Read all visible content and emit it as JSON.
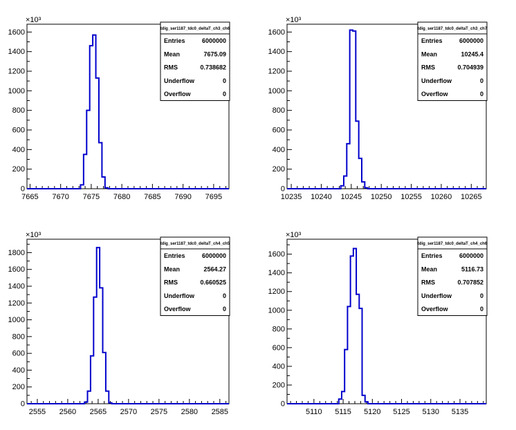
{
  "colors": {
    "histogram": "#0000cc",
    "axis": "#000000",
    "background": "#ffffff"
  },
  "chart_data": [
    {
      "type": "bar",
      "title": "tdig_ser1187_tdc0_deltaT_ch3_ch6",
      "exponent_label": "×10³",
      "xlim": [
        7664.5,
        7697.5
      ],
      "ylim": [
        0,
        1680
      ],
      "x_ticks": [
        7665,
        7670,
        7675,
        7680,
        7685,
        7690,
        7695
      ],
      "y_ticks": [
        0,
        200,
        400,
        600,
        800,
        1000,
        1200,
        1400,
        1600
      ],
      "bins": [
        {
          "x": 7673.5,
          "y": 40
        },
        {
          "x": 7674,
          "y": 350
        },
        {
          "x": 7674.5,
          "y": 800
        },
        {
          "x": 7675,
          "y": 1460
        },
        {
          "x": 7675.5,
          "y": 1570
        },
        {
          "x": 7676,
          "y": 1130
        },
        {
          "x": 7676.5,
          "y": 470
        },
        {
          "x": 7677,
          "y": 120
        },
        {
          "x": 7677.5,
          "y": 10
        }
      ],
      "bin_width": 0.5,
      "stats": [
        {
          "label": "Entries",
          "value": "6000000"
        },
        {
          "label": "Mean",
          "value": "7675.09"
        },
        {
          "label": "RMS",
          "value": "0.738682"
        },
        {
          "label": "Underflow",
          "value": "0"
        },
        {
          "label": "Overflow",
          "value": "0"
        }
      ]
    },
    {
      "type": "bar",
      "title": "tdig_ser1187_tdc0_deltaT_ch3_ch7",
      "exponent_label": "×10³",
      "xlim": [
        10234.3,
        10267.5
      ],
      "ylim": [
        0,
        1680
      ],
      "x_ticks": [
        10235,
        10240,
        10245,
        10250,
        10255,
        10260,
        10265
      ],
      "y_ticks": [
        0,
        200,
        400,
        600,
        800,
        1000,
        1200,
        1400,
        1600
      ],
      "bins": [
        {
          "x": 10243.5,
          "y": 30
        },
        {
          "x": 10244,
          "y": 130
        },
        {
          "x": 10244.5,
          "y": 460
        },
        {
          "x": 10245,
          "y": 1620
        },
        {
          "x": 10245.5,
          "y": 1610
        },
        {
          "x": 10246,
          "y": 690
        },
        {
          "x": 10246.5,
          "y": 310
        },
        {
          "x": 10247,
          "y": 70
        },
        {
          "x": 10247.5,
          "y": 10
        }
      ],
      "bin_width": 0.5,
      "stats": [
        {
          "label": "Entries",
          "value": "6000000"
        },
        {
          "label": "Mean",
          "value": "10245.4"
        },
        {
          "label": "RMS",
          "value": "0.704939"
        },
        {
          "label": "Underflow",
          "value": "0"
        },
        {
          "label": "Overflow",
          "value": "0"
        }
      ]
    },
    {
      "type": "bar",
      "title": "tdig_ser1187_tdc0_deltaT_ch4_ch5",
      "exponent_label": "×10³",
      "xlim": [
        2553.3,
        2586.5
      ],
      "ylim": [
        0,
        1960
      ],
      "x_ticks": [
        2555,
        2560,
        2565,
        2570,
        2575,
        2580,
        2585
      ],
      "y_ticks": [
        0,
        200,
        400,
        600,
        800,
        1000,
        1200,
        1400,
        1600,
        1800
      ],
      "bins": [
        {
          "x": 2563,
          "y": 20
        },
        {
          "x": 2563.5,
          "y": 150
        },
        {
          "x": 2564,
          "y": 570
        },
        {
          "x": 2564.5,
          "y": 1270
        },
        {
          "x": 2565,
          "y": 1860
        },
        {
          "x": 2565.5,
          "y": 1380
        },
        {
          "x": 2566,
          "y": 610
        },
        {
          "x": 2566.5,
          "y": 150
        },
        {
          "x": 2567,
          "y": 10
        }
      ],
      "bin_width": 0.5,
      "stats": [
        {
          "label": "Entries",
          "value": "6000000"
        },
        {
          "label": "Mean",
          "value": "2564.27"
        },
        {
          "label": "RMS",
          "value": "0.660525"
        },
        {
          "label": "Underflow",
          "value": "0"
        },
        {
          "label": "Overflow",
          "value": "0"
        }
      ]
    },
    {
      "type": "bar",
      "title": "tdig_ser1187_tdc0_deltaT_ch4_ch6",
      "exponent_label": "×10³",
      "xlim": [
        5105.4,
        5139.5
      ],
      "ylim": [
        0,
        1760
      ],
      "x_ticks": [
        5110,
        5115,
        5120,
        5125,
        5130,
        5135
      ],
      "y_ticks": [
        0,
        200,
        400,
        600,
        800,
        1000,
        1200,
        1400,
        1600
      ],
      "bins": [
        {
          "x": 5114.5,
          "y": 50
        },
        {
          "x": 5115,
          "y": 130
        },
        {
          "x": 5115.5,
          "y": 580
        },
        {
          "x": 5116,
          "y": 1040
        },
        {
          "x": 5116.5,
          "y": 1580
        },
        {
          "x": 5117,
          "y": 1660
        },
        {
          "x": 5117.5,
          "y": 1170
        },
        {
          "x": 5118,
          "y": 1020
        },
        {
          "x": 5118.5,
          "y": 90
        },
        {
          "x": 5119,
          "y": 20
        }
      ],
      "bin_width": 0.5,
      "stats": [
        {
          "label": "Entries",
          "value": "6000000"
        },
        {
          "label": "Mean",
          "value": "5116.73"
        },
        {
          "label": "RMS",
          "value": "0.707852"
        },
        {
          "label": "Underflow",
          "value": "0"
        },
        {
          "label": "Overflow",
          "value": "0"
        }
      ]
    }
  ]
}
